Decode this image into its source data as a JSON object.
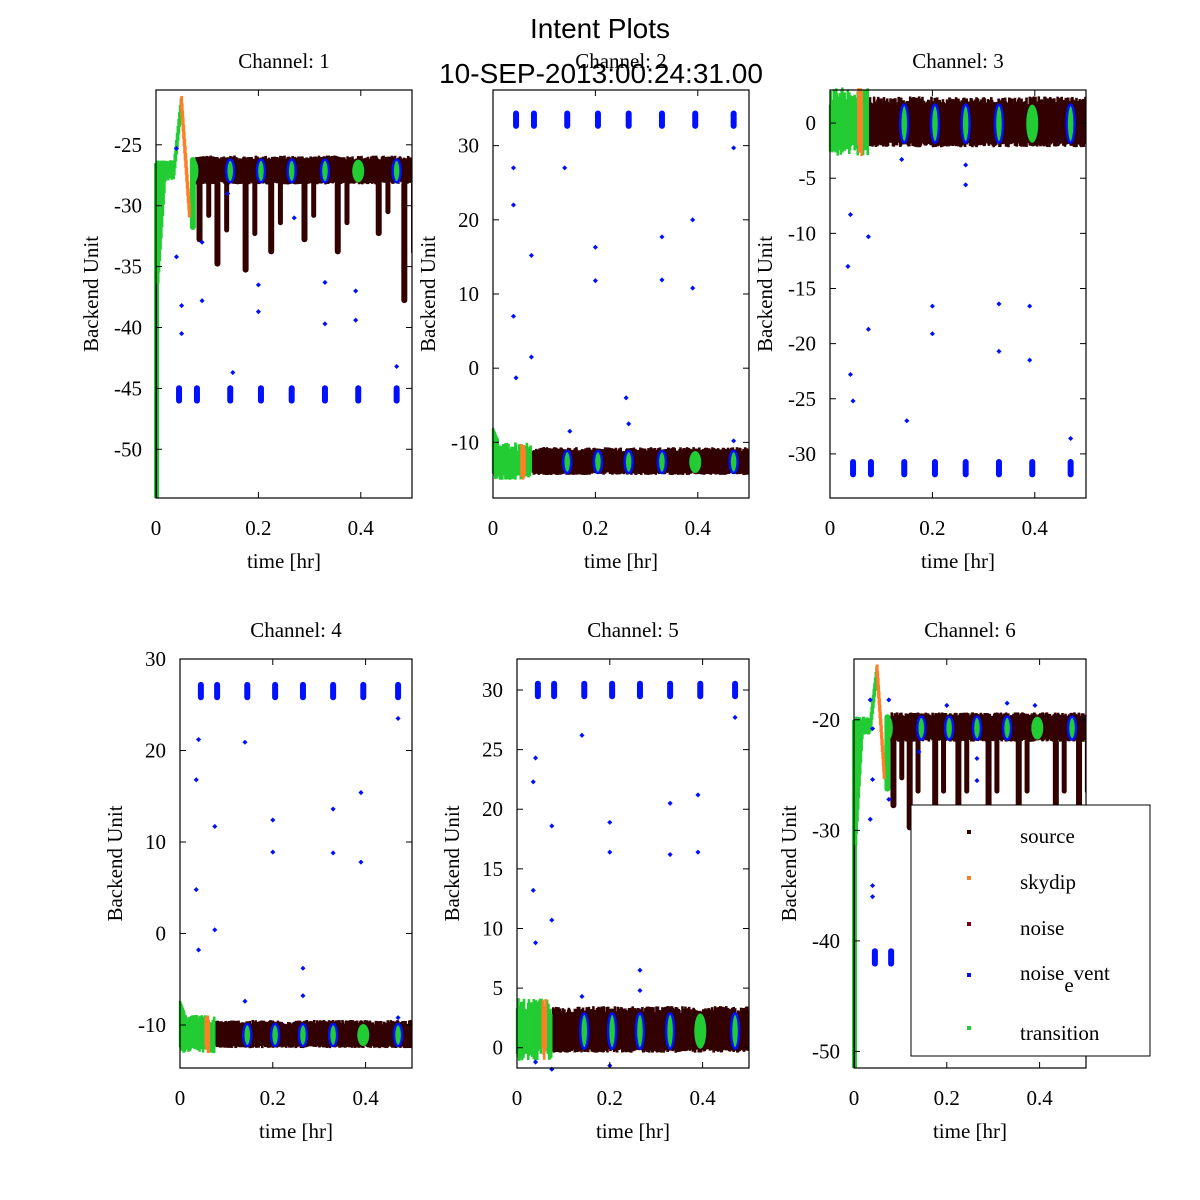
{
  "figure": {
    "title_line1": "Intent Plots",
    "title_line2": "10-SEP-2013:00:24:31.00"
  },
  "legend": {
    "placement": "inside-right of Channel: 6",
    "entries": [
      {
        "key": "source",
        "label": "source",
        "color": "#330000"
      },
      {
        "key": "skydip",
        "label": "skydip",
        "color": "#ff7f27"
      },
      {
        "key": "noise",
        "label": "noise",
        "color": "#7a0010"
      },
      {
        "key": "noise_event",
        "label_main": "noise",
        "label_sub": "e",
        "label_rest": "vent",
        "color": "#0010ff"
      },
      {
        "key": "transition",
        "label": "transition",
        "color": "#22cc33"
      }
    ]
  },
  "chart_data": [
    {
      "type": "scatter",
      "title": "Channel: 1",
      "xlabel": "time [hr]",
      "ylabel": "Backend Unit",
      "xlim": [
        0,
        0.5
      ],
      "ylim": [
        -54,
        -20.5
      ],
      "xticks": [
        0,
        0.2,
        0.4
      ],
      "xtick_labels": [
        "0",
        "0.2",
        "0.4"
      ],
      "yticks": [
        -50,
        -45,
        -40,
        -35,
        -30,
        -25
      ],
      "ytick_labels": [
        "-50",
        "-45",
        "-40",
        "-35",
        "-30",
        "-25"
      ],
      "source_band": [
        -28.0,
        -26.3
      ],
      "source_dips": [
        -33,
        -35,
        -35.5,
        -34,
        -33,
        -34,
        -32.5,
        -38
      ],
      "transition_start": [
        -54,
        -26.5
      ],
      "transition_peak": -20.8,
      "skydip_peak": -21,
      "transition_end": -32,
      "noise_event_cluster": -45.5,
      "noise_event_outliers": [
        [
          0.04,
          -25.3
        ],
        [
          0.05,
          -38.2
        ],
        [
          0.04,
          -34.2
        ],
        [
          0.05,
          -40.5
        ],
        [
          0.09,
          -33
        ],
        [
          0.09,
          -37.8
        ],
        [
          0.14,
          -29
        ],
        [
          0.15,
          -43.7
        ],
        [
          0.2,
          -38.7
        ],
        [
          0.2,
          -36.5
        ],
        [
          0.27,
          -31
        ],
        [
          0.33,
          -36.3
        ],
        [
          0.33,
          -39.7
        ],
        [
          0.39,
          -37
        ],
        [
          0.39,
          -39.4
        ],
        [
          0.47,
          -43.2
        ]
      ]
    },
    {
      "type": "scatter",
      "title": "Channel: 2",
      "xlabel": "time [hr]",
      "ylabel": "Backend Unit",
      "xlim": [
        0,
        0.5
      ],
      "ylim": [
        -17.5,
        37.5
      ],
      "xticks": [
        0,
        0.2,
        0.4
      ],
      "xtick_labels": [
        "0",
        "0.2",
        "0.4"
      ],
      "yticks": [
        -10,
        0,
        10,
        20,
        30
      ],
      "ytick_labels": [
        "-10",
        "0",
        "10",
        "20",
        "30"
      ],
      "source_band": [
        -14,
        -11.3
      ],
      "noise_event_cluster": 33.5,
      "noise_event_outliers": [
        [
          0.04,
          27
        ],
        [
          0.04,
          22
        ],
        [
          0.04,
          7
        ],
        [
          0.045,
          -1.3
        ],
        [
          0.075,
          15.2
        ],
        [
          0.075,
          1.5
        ],
        [
          0.14,
          27
        ],
        [
          0.2,
          16.3
        ],
        [
          0.2,
          11.8
        ],
        [
          0.26,
          -4
        ],
        [
          0.265,
          -7.5
        ],
        [
          0.33,
          17.7
        ],
        [
          0.33,
          11.9
        ],
        [
          0.39,
          20
        ],
        [
          0.39,
          10.8
        ],
        [
          0.15,
          -8.5
        ],
        [
          0.47,
          -9.8
        ],
        [
          0.47,
          29.7
        ]
      ]
    },
    {
      "type": "scatter",
      "title": "Channel: 3",
      "xlabel": "time [hr]",
      "ylabel": "Backend Unit",
      "xlim": [
        0,
        0.5
      ],
      "ylim": [
        -34,
        3
      ],
      "xticks": [
        0,
        0.2,
        0.4
      ],
      "xtick_labels": [
        "0",
        "0.2",
        "0.4"
      ],
      "yticks": [
        -30,
        -25,
        -20,
        -15,
        -10,
        -5,
        0
      ],
      "ytick_labels": [
        "-30",
        "-25",
        "-20",
        "-15",
        "-10",
        "-5",
        "0"
      ],
      "source_band": [
        -1.7,
        1.6
      ],
      "noise_event_cluster": -31.3,
      "noise_event_outliers": [
        [
          0.035,
          -13
        ],
        [
          0.04,
          -8.3
        ],
        [
          0.04,
          -22.8
        ],
        [
          0.045,
          -25.2
        ],
        [
          0.075,
          -10.3
        ],
        [
          0.075,
          -18.7
        ],
        [
          0.14,
          -3.3
        ],
        [
          0.15,
          -27
        ],
        [
          0.2,
          -16.6
        ],
        [
          0.2,
          -19.1
        ],
        [
          0.265,
          -3.8
        ],
        [
          0.265,
          -5.6
        ],
        [
          0.33,
          -16.4
        ],
        [
          0.33,
          -20.7
        ],
        [
          0.39,
          -16.6
        ],
        [
          0.39,
          -21.5
        ],
        [
          0.47,
          -28.6
        ]
      ]
    },
    {
      "type": "scatter",
      "title": "Channel: 4",
      "xlabel": "time [hr]",
      "ylabel": "Backend Unit",
      "xlim": [
        0,
        0.5
      ],
      "ylim": [
        -14.7,
        30
      ],
      "xticks": [
        0,
        0.2,
        0.4
      ],
      "xtick_labels": [
        "0",
        "0.2",
        "0.4"
      ],
      "yticks": [
        -10,
        0,
        10,
        20,
        30
      ],
      "ytick_labels": [
        "-10",
        "0",
        "10",
        "20",
        "30"
      ],
      "source_band": [
        -12.2,
        -10
      ],
      "noise_event_cluster": 26.5,
      "noise_event_outliers": [
        [
          0.04,
          21.2
        ],
        [
          0.035,
          16.8
        ],
        [
          0.035,
          4.8
        ],
        [
          0.04,
          -1.8
        ],
        [
          0.075,
          11.7
        ],
        [
          0.075,
          0.4
        ],
        [
          0.14,
          20.9
        ],
        [
          0.14,
          -7.4
        ],
        [
          0.2,
          12.4
        ],
        [
          0.2,
          8.9
        ],
        [
          0.265,
          -3.8
        ],
        [
          0.265,
          -6.8
        ],
        [
          0.33,
          13.6
        ],
        [
          0.33,
          8.8
        ],
        [
          0.39,
          15.4
        ],
        [
          0.39,
          7.8
        ],
        [
          0.47,
          23.5
        ],
        [
          0.47,
          -9.2
        ]
      ]
    },
    {
      "type": "scatter",
      "title": "Channel: 5",
      "xlabel": "time [hr]",
      "ylabel": "Backend Unit",
      "xlim": [
        0,
        0.5
      ],
      "ylim": [
        -1.7,
        32.6
      ],
      "xticks": [
        0,
        0.2,
        0.4
      ],
      "xtick_labels": [
        "0",
        "0.2",
        "0.4"
      ],
      "yticks": [
        0,
        5,
        10,
        15,
        20,
        25,
        30
      ],
      "ytick_labels": [
        "0",
        "5",
        "10",
        "15",
        "20",
        "25",
        "30"
      ],
      "source_band": [
        0,
        2.8
      ],
      "noise_event_cluster": 30,
      "noise_event_outliers": [
        [
          0.04,
          24.3
        ],
        [
          0.035,
          22.3
        ],
        [
          0.035,
          13.2
        ],
        [
          0.04,
          8.8
        ],
        [
          0.075,
          18.6
        ],
        [
          0.075,
          10.7
        ],
        [
          0.14,
          26.2
        ],
        [
          0.14,
          4.3
        ],
        [
          0.2,
          18.9
        ],
        [
          0.2,
          16.4
        ],
        [
          0.265,
          6.5
        ],
        [
          0.265,
          4.8
        ],
        [
          0.33,
          20.5
        ],
        [
          0.33,
          16.2
        ],
        [
          0.39,
          21.2
        ],
        [
          0.39,
          16.4
        ],
        [
          0.47,
          27.7
        ],
        [
          0.04,
          -1.2
        ],
        [
          0.075,
          -1.8
        ],
        [
          0.2,
          -1.5
        ]
      ]
    },
    {
      "type": "scatter",
      "title": "Channel: 6",
      "xlabel": "time [hr]",
      "ylabel": "Backend Unit",
      "xlim": [
        0,
        0.5
      ],
      "ylim": [
        -51.5,
        -14.5
      ],
      "xticks": [
        0,
        0.2,
        0.4
      ],
      "xtick_labels": [
        "0",
        "0.2",
        "0.4"
      ],
      "yticks": [
        -50,
        -40,
        -30,
        -20
      ],
      "ytick_labels": [
        "-50",
        "-40",
        "-30",
        "-20"
      ],
      "source_band": [
        -21.7,
        -19.8
      ],
      "source_dips": [
        -28,
        -30,
        -30,
        -30,
        -30,
        -30,
        -30,
        -30
      ],
      "transition_start": [
        -51.5,
        -20
      ],
      "transition_peak": -14.8,
      "skydip_peak": -15,
      "transition_end": -26.5,
      "noise_event_cluster": -41.5,
      "noise_event_outliers": [
        [
          0.035,
          -18.2
        ],
        [
          0.04,
          -20.8
        ],
        [
          0.04,
          -25.4
        ],
        [
          0.035,
          -29
        ],
        [
          0.075,
          -18.2
        ],
        [
          0.075,
          -27.2
        ],
        [
          0.04,
          -35
        ],
        [
          0.04,
          -36
        ],
        [
          0.14,
          -22.9
        ],
        [
          0.2,
          -18.7
        ],
        [
          0.265,
          -23.5
        ],
        [
          0.265,
          -25.5
        ],
        [
          0.33,
          -18.5
        ],
        [
          0.39,
          -18.7
        ]
      ]
    }
  ]
}
